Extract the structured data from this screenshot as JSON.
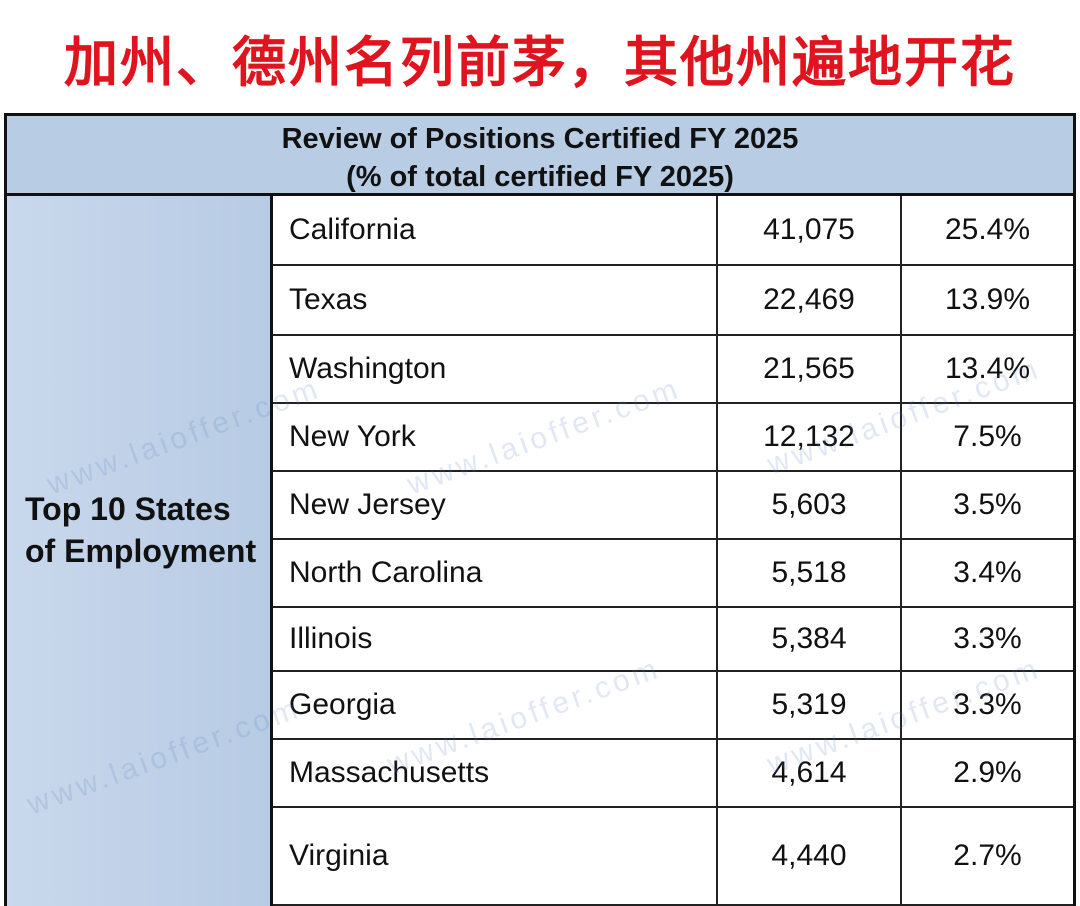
{
  "header": {
    "title": "加州、德州名列前茅，其他州遍地开花"
  },
  "table": {
    "title": "Review of Positions Certified FY 2025",
    "subtitle": "(% of total certified FY 2025)",
    "group_label": "Top 10 States of Employment",
    "rows": [
      [
        "California",
        "41,075",
        "25.4%"
      ],
      [
        "Texas",
        "22,469",
        "13.9%"
      ],
      [
        "Washington",
        "21,565",
        "13.4%"
      ],
      [
        "New York",
        "12,132",
        "7.5%"
      ],
      [
        "New Jersey",
        "5,603",
        "3.5%"
      ],
      [
        "North Carolina",
        "5,518",
        "3.4%"
      ],
      [
        "Illinois",
        "5,384",
        "3.3%"
      ],
      [
        "Georgia",
        "5,319",
        "3.3%"
      ],
      [
        "Massachusetts",
        "4,614",
        "2.9%"
      ],
      [
        "Virginia",
        "4,440",
        "2.7%"
      ]
    ]
  },
  "watermark": "www.laioffer.com"
}
